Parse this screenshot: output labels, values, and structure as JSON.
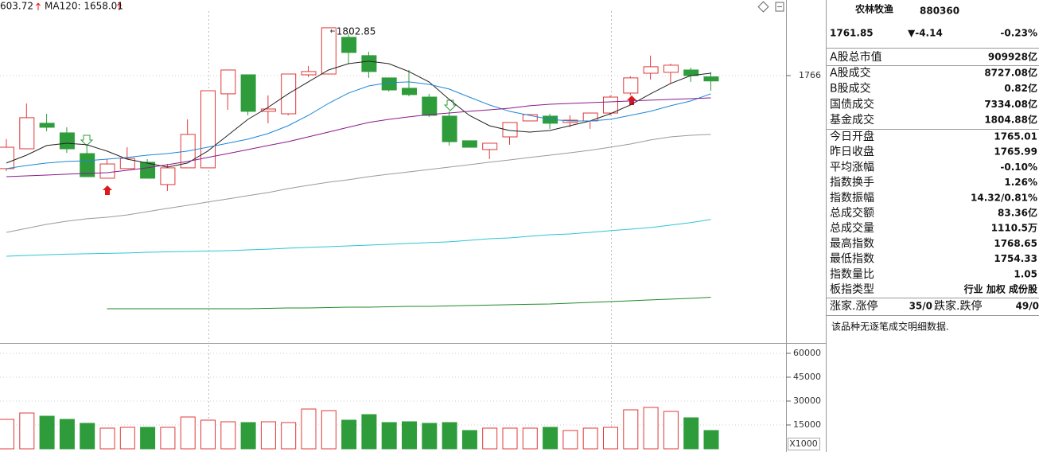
{
  "chart_data": {
    "type": "candlestick",
    "ma_labels": [
      {
        "text": "603.72",
        "color": "#1a9a2a"
      },
      {
        "text": "MA120: 1658.01",
        "color": "#14a7b0"
      }
    ],
    "annotation": "1802.85",
    "up_color": "#e0383a",
    "down_color": "#2e9c3b",
    "ylim": [
      1560.3,
      1824.3
    ],
    "yticks": [
      1766
    ],
    "open": [
      1694.2,
      1709.5,
      1729.2,
      1721.8,
      1705.8,
      1686.8,
      1694.2,
      1699.1,
      1681.9,
      1694.8,
      1694.8,
      1751.9,
      1766.6,
      1738.4,
      1736.5,
      1766.6,
      1767.2,
      1795.5,
      1781.4,
      1764.2,
      1756.2,
      1749.4,
      1734.7,
      1715.7,
      1708.9,
      1718.7,
      1731.0,
      1734.7,
      1729.8,
      1731.0,
      1737.1,
      1752.5,
      1767.8,
      1768.5,
      1770.3,
      1765.01
    ],
    "high": [
      1716.9,
      1744.5,
      1736.5,
      1726.1,
      1712.6,
      1701.5,
      1710.7,
      1701.5,
      1697.8,
      1732.2,
      1754.3,
      1770.3,
      1766.6,
      1750.7,
      1767.2,
      1773.4,
      1802.85,
      1798.5,
      1784.4,
      1764.2,
      1770.3,
      1751.9,
      1738.4,
      1715.7,
      1713.8,
      1729.8,
      1735.9,
      1736.5,
      1735.3,
      1737.1,
      1750.7,
      1765.4,
      1781.4,
      1775.2,
      1772.1,
      1768.65
    ],
    "low": [
      1692.3,
      1709.5,
      1723.0,
      1706.4,
      1688.0,
      1686.8,
      1694.2,
      1686.8,
      1677.0,
      1694.8,
      1694.8,
      1739.6,
      1735.3,
      1729.2,
      1735.3,
      1764.8,
      1767.2,
      1775.2,
      1764.2,
      1753.7,
      1750.0,
      1734.1,
      1712.0,
      1710.7,
      1701.5,
      1712.6,
      1731.0,
      1724.9,
      1726.1,
      1724.9,
      1735.3,
      1750.7,
      1762.9,
      1759.9,
      1761.1,
      1754.33
    ],
    "close": [
      1710.7,
      1733.5,
      1726.1,
      1709.5,
      1688.0,
      1697.8,
      1702.1,
      1686.8,
      1694.8,
      1720.6,
      1754.3,
      1770.3,
      1738.4,
      1740.2,
      1767.2,
      1769.1,
      1802.85,
      1783.8,
      1769.1,
      1754.9,
      1751.3,
      1735.3,
      1715.0,
      1710.7,
      1713.8,
      1729.8,
      1735.9,
      1729.2,
      1731.6,
      1737.1,
      1749.4,
      1764.2,
      1772.8,
      1774.0,
      1765.99,
      1761.85
    ],
    "ma_lines": [
      {
        "color": "#222222",
        "values": [
          1698.5,
          1704.6,
          1712.0,
          1713.8,
          1712.6,
          1707.7,
          1701.5,
          1698.5,
          1695.4,
          1698.5,
          1707.7,
          1719.9,
          1732.2,
          1741.4,
          1751.9,
          1761.1,
          1770.3,
          1775.2,
          1777.1,
          1775.2,
          1769.1,
          1761.1,
          1747.6,
          1735.3,
          1727.3,
          1723.6,
          1722.4,
          1723.6,
          1727.3,
          1731.0,
          1736.5,
          1743.3,
          1751.9,
          1759.9,
          1766.0,
          1767.8
        ]
      },
      {
        "color": "#1f86d6",
        "values": [
          1694.2,
          1696.6,
          1698.5,
          1699.7,
          1700.3,
          1701.5,
          1702.8,
          1704.6,
          1705.8,
          1707.7,
          1710.7,
          1713.8,
          1716.9,
          1721.2,
          1727.3,
          1735.3,
          1744.5,
          1752.5,
          1758.0,
          1760.5,
          1761.1,
          1759.2,
          1755.6,
          1749.4,
          1743.3,
          1738.4,
          1735.3,
          1732.2,
          1731.0,
          1731.0,
          1732.2,
          1735.3,
          1738.4,
          1742.7,
          1746.4,
          1751.9
        ]
      },
      {
        "color": "#8a1a8a",
        "values": [
          1688.0,
          1688.6,
          1689.2,
          1689.9,
          1690.5,
          1691.1,
          1692.9,
          1694.8,
          1697.2,
          1699.7,
          1702.8,
          1705.8,
          1708.9,
          1712.0,
          1715.0,
          1718.7,
          1722.4,
          1726.1,
          1729.8,
          1732.2,
          1734.1,
          1735.9,
          1737.1,
          1738.4,
          1739.6,
          1740.8,
          1742.7,
          1743.9,
          1744.5,
          1745.1,
          1745.7,
          1746.4,
          1747.0,
          1747.6,
          1748.2,
          1748.8
        ]
      },
      {
        "color": "#9a9a9a",
        "values": [
          1645.0,
          1648.1,
          1651.2,
          1653.6,
          1655.5,
          1656.7,
          1658.5,
          1661.0,
          1663.5,
          1665.9,
          1668.4,
          1670.8,
          1673.3,
          1675.7,
          1678.8,
          1681.3,
          1683.7,
          1685.6,
          1688.0,
          1689.9,
          1691.7,
          1693.5,
          1695.4,
          1697.2,
          1699.1,
          1700.9,
          1702.8,
          1704.6,
          1706.4,
          1708.3,
          1710.7,
          1713.2,
          1716.3,
          1718.7,
          1719.9,
          1720.6
        ]
      },
      {
        "color": "#2cc6d4",
        "values": [
          1626.6,
          1627.2,
          1627.8,
          1628.2,
          1628.5,
          1628.8,
          1629.1,
          1629.7,
          1630.0,
          1630.3,
          1630.6,
          1630.9,
          1631.5,
          1632.1,
          1632.8,
          1633.4,
          1634.0,
          1634.6,
          1635.2,
          1635.8,
          1636.5,
          1637.1,
          1637.7,
          1638.9,
          1640.1,
          1640.7,
          1642.0,
          1643.2,
          1643.8,
          1645.0,
          1646.3,
          1647.5,
          1648.7,
          1650.6,
          1652.5,
          1655.0
        ]
      },
      {
        "color": "#1e8a2a",
        "values": [
          null,
          null,
          null,
          null,
          null,
          1586.1,
          1586.1,
          1586.1,
          1586.1,
          1586.1,
          1586.1,
          1586.1,
          1586.1,
          1586.4,
          1586.7,
          1586.7,
          1587.0,
          1587.3,
          1587.3,
          1587.6,
          1587.9,
          1587.9,
          1588.3,
          1588.6,
          1588.9,
          1589.2,
          1589.5,
          1589.8,
          1590.4,
          1591.0,
          1591.6,
          1592.2,
          1592.9,
          1593.5,
          1594.1,
          1595.0
        ]
      }
    ],
    "volume": {
      "values": [
        18500,
        22500,
        20500,
        18500,
        16000,
        13000,
        13500,
        13500,
        13500,
        20000,
        18000,
        17000,
        16500,
        17000,
        16500,
        25000,
        24000,
        18000,
        21500,
        16500,
        17000,
        16000,
        16500,
        11500,
        13000,
        13000,
        13000,
        13500,
        11500,
        13000,
        13500,
        24500,
        26000,
        23500,
        19500,
        11500
      ],
      "ylim": [
        0,
        66000
      ],
      "yticks": [
        15000,
        30000,
        45000,
        60000
      ],
      "unit_label": "X1000"
    }
  },
  "panel": {
    "name": "农林牧渔",
    "code": "880360",
    "price": "1761.85",
    "change": "▼-4.14",
    "change_pct": "-0.23%",
    "stats": [
      {
        "label": "A股总市值",
        "value": "909928亿"
      },
      {
        "label": "A股成交",
        "value": "8727.08亿"
      },
      {
        "label": "B股成交",
        "value": "0.82亿"
      },
      {
        "label": "国债成交",
        "value": "7334.08亿"
      },
      {
        "label": "基金成交",
        "value": "1804.88亿"
      },
      {
        "label": "今日开盘",
        "value": "1765.01",
        "color": "#1a9a2a"
      },
      {
        "label": "昨日收盘",
        "value": "1765.99"
      },
      {
        "label": "平均涨幅",
        "value": "-0.10%",
        "color": "#1a9a2a"
      },
      {
        "label": "指数换手",
        "value": "1.26%"
      },
      {
        "label": "指数振幅",
        "value": "14.32/0.81%"
      },
      {
        "label": "总成交额",
        "value": "83.36亿"
      },
      {
        "label": "总成交量",
        "value": "1110.5万"
      },
      {
        "label": "最高指数",
        "value": "1768.65",
        "color": "#e0383a"
      },
      {
        "label": "最低指数",
        "value": "1754.33",
        "color": "#1a9a2a"
      },
      {
        "label": "指数量比",
        "value": "1.05",
        "color": "#e0383a"
      },
      {
        "label": "板指类型",
        "value": "行业 加权 成份股",
        "color": "#555555"
      }
    ],
    "breadth": {
      "up_label": "涨家.涨停",
      "up_value": "35/0",
      "down_label": "跌家.跌停",
      "down_value": "49/0"
    },
    "note": "该品种无逐笔成交明细数据."
  }
}
